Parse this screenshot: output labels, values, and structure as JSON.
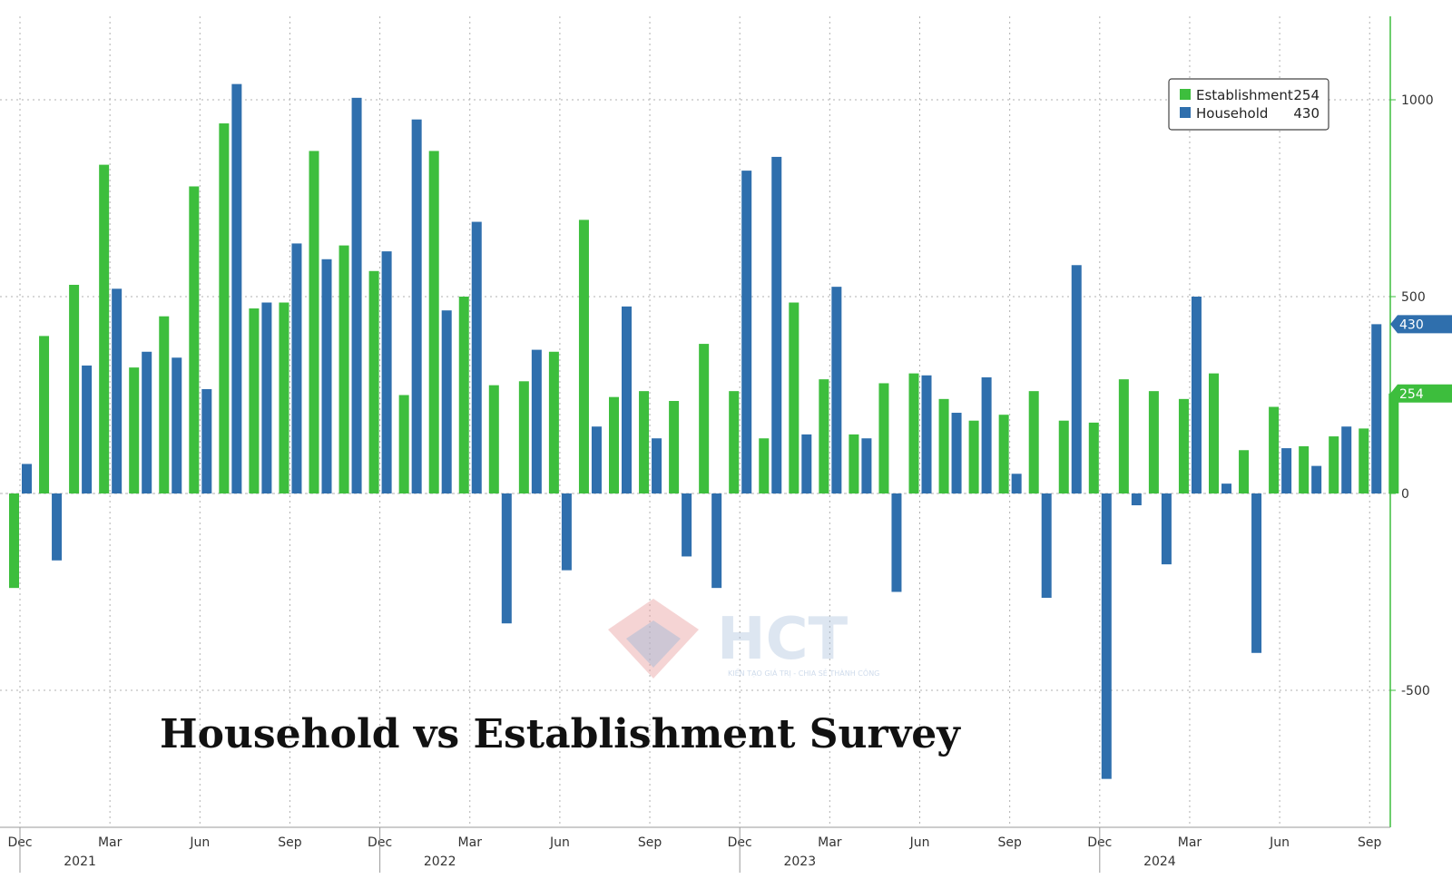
{
  "chart_data": {
    "type": "bar",
    "title": "Household vs Establishment Survey",
    "x_tick_labels": [
      "Dec",
      "Mar",
      "Jun",
      "Sep",
      "Dec",
      "Mar",
      "Jun",
      "Sep",
      "Dec",
      "Mar",
      "Jun",
      "Sep",
      "Dec",
      "Mar",
      "Jun",
      "Sep"
    ],
    "year_labels": [
      "2021",
      "2022",
      "2023",
      "2024"
    ],
    "y_ticks": [
      1000,
      500,
      0,
      -500
    ],
    "ylim": [
      -850,
      1200
    ],
    "series": [
      {
        "name": "Establishment",
        "last_value": "254",
        "color": "#3dbe3d",
        "values": [
          -240,
          400,
          530,
          835,
          320,
          450,
          780,
          940,
          470,
          485,
          870,
          630,
          565,
          250,
          870,
          500,
          275,
          285,
          360,
          695,
          245,
          260,
          235,
          380,
          260,
          140,
          485,
          290,
          150,
          280,
          305,
          240,
          185,
          200,
          260,
          185,
          180,
          290,
          260,
          240,
          305,
          110,
          220,
          120,
          145,
          165,
          254
        ]
      },
      {
        "name": "Household",
        "last_value": "430",
        "color": "#2f6fad",
        "values": [
          75,
          -170,
          325,
          520,
          360,
          345,
          265,
          1040,
          485,
          635,
          595,
          1005,
          615,
          950,
          465,
          690,
          -330,
          365,
          -195,
          170,
          475,
          140,
          -160,
          -240,
          820,
          855,
          150,
          525,
          140,
          -250,
          300,
          205,
          295,
          50,
          -265,
          580,
          -725,
          -30,
          -180,
          500,
          25,
          -405,
          115,
          70,
          170,
          430
        ]
      }
    ]
  }
}
